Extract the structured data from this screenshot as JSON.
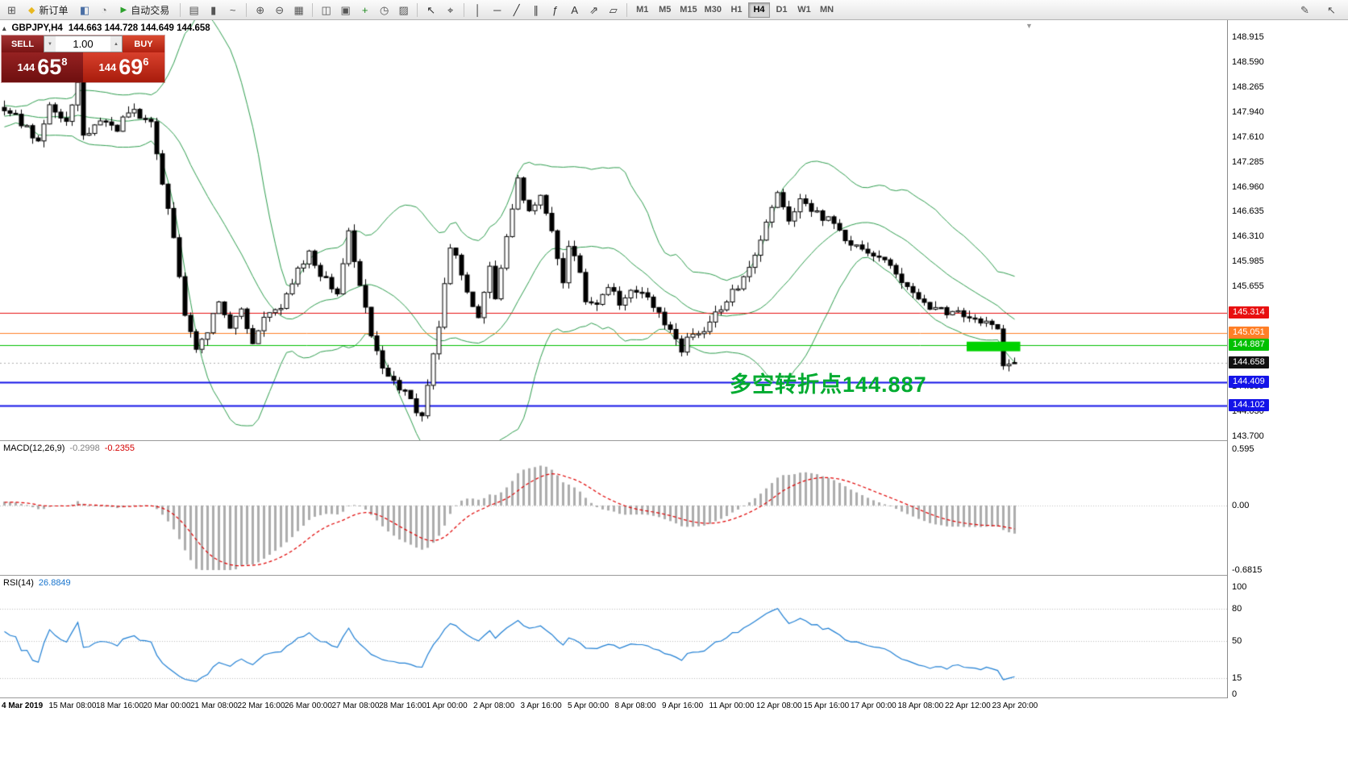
{
  "toolbar": {
    "group_file": [
      {
        "name": "new-chart-button",
        "glyph": "⊞",
        "color": "#555"
      }
    ],
    "new_order": {
      "label": "新订单",
      "icon_glyph": "◆",
      "icon_color": "#e8b820"
    },
    "group_mid": [
      {
        "name": "metaeditor-icon",
        "glyph": "◧",
        "color": "#4a6fa5"
      },
      {
        "name": "options-icon",
        "glyph": "◔",
        "color": "#777777"
      }
    ],
    "autotrading": {
      "label": "自动交易",
      "icon_glyph": "▶",
      "icon_color": "#2da12d"
    },
    "group_charttype": [
      {
        "name": "bar-chart-button",
        "glyph": "▤",
        "color": "#555"
      },
      {
        "name": "candlestick-chart-button",
        "glyph": "▮",
        "color": "#555"
      },
      {
        "name": "line-chart-button",
        "glyph": "~",
        "color": "#555"
      }
    ],
    "group_zoom": [
      {
        "name": "zoom-in-button",
        "glyph": "⊕",
        "color": "#555"
      },
      {
        "name": "zoom-out-button",
        "glyph": "⊖",
        "color": "#555"
      },
      {
        "name": "tile-windows-button",
        "glyph": "▦",
        "color": "#555"
      }
    ],
    "group_windows": [
      {
        "name": "auto-arrange-button",
        "glyph": "◫",
        "color": "#555"
      },
      {
        "name": "track-chart-button",
        "glyph": "▣",
        "color": "#555"
      },
      {
        "name": "add-indicator-button",
        "glyph": "+",
        "color": "#1d8a1d"
      },
      {
        "name": "periods-button",
        "glyph": "◷",
        "color": "#555"
      },
      {
        "name": "templates-button",
        "glyph": "▨",
        "color": "#555"
      }
    ],
    "group_cursor": [
      {
        "name": "cursor-tool-button",
        "glyph": "↖",
        "color": "#333"
      },
      {
        "name": "crosshair-tool-button",
        "glyph": "⌖",
        "color": "#333"
      }
    ],
    "group_draw": [
      {
        "name": "vertical-line-button",
        "glyph": "│",
        "color": "#333"
      },
      {
        "name": "horizontal-line-button",
        "glyph": "─",
        "color": "#333"
      },
      {
        "name": "trendline-button",
        "glyph": "╱",
        "color": "#333"
      },
      {
        "name": "channel-button",
        "glyph": "∥",
        "color": "#333"
      },
      {
        "name": "fibonacci-button",
        "glyph": "ƒ",
        "color": "#333"
      },
      {
        "name": "text-tool-button",
        "glyph": "A",
        "color": "#333"
      },
      {
        "name": "arrow-tool-button",
        "glyph": "⇗",
        "color": "#333"
      },
      {
        "name": "shapes-button",
        "glyph": "▱",
        "color": "#333"
      }
    ],
    "timeframes": [
      {
        "name": "tf-m1",
        "label": "M1"
      },
      {
        "name": "tf-m5",
        "label": "M5"
      },
      {
        "name": "tf-m15",
        "label": "M15"
      },
      {
        "name": "tf-m30",
        "label": "M30"
      },
      {
        "name": "tf-h1",
        "label": "H1"
      },
      {
        "name": "tf-h4",
        "label": "H4",
        "active": true
      },
      {
        "name": "tf-d1",
        "label": "D1"
      },
      {
        "name": "tf-w1",
        "label": "W1"
      },
      {
        "name": "tf-mn",
        "label": "MN"
      }
    ],
    "group_right": [
      {
        "name": "edit-button",
        "glyph": "✎",
        "color": "#555"
      },
      {
        "name": "pointer-button",
        "glyph": "↖",
        "color": "#555"
      }
    ]
  },
  "chart": {
    "symbol_title": "GBPJPY,H4",
    "ohlc_text": "144.663 144.728 144.649 144.658",
    "collapse_glyph": "▴",
    "shift_marker_glyph": "▼"
  },
  "trade_panel": {
    "sell_label": "SELL",
    "buy_label": "BUY",
    "volume": "1.00",
    "vol_down_glyph": "▼",
    "vol_up_glyph": "▲",
    "sell_price_prefix": "144",
    "sell_price_big": "65",
    "sell_price_sup": "8",
    "buy_price_prefix": "144",
    "buy_price_big": "69",
    "buy_price_sup": "6"
  },
  "annotation": {
    "text": "多空转折点144.887",
    "color": "#00ab30"
  },
  "macd_panel": {
    "label": "MACD(12,26,9)",
    "value_main": "-0.2998",
    "value_signal": "-0.2355",
    "scale": [
      {
        "text": "0.595",
        "value": 0.595
      },
      {
        "text": "0.00",
        "value": 0
      },
      {
        "text": "-0.6815",
        "value": -0.6815
      }
    ]
  },
  "rsi_panel": {
    "label": "RSI(14)",
    "value": "26.8849",
    "scale": [
      {
        "text": "100",
        "value": 100
      },
      {
        "text": "80",
        "value": 80
      },
      {
        "text": "50",
        "value": 50
      },
      {
        "text": "15",
        "value": 15
      },
      {
        "text": "0",
        "value": 0
      }
    ]
  },
  "price_scale": {
    "labels": [
      "148.915",
      "148.590",
      "148.265",
      "147.940",
      "147.610",
      "147.285",
      "146.960",
      "146.635",
      "146.310",
      "145.985",
      "145.655",
      "145.330",
      "145.005",
      "144.680",
      "144.355",
      "144.030",
      "143.700"
    ],
    "badges": [
      {
        "text": "145.314",
        "price": 145.314,
        "bg": "#e81010",
        "fg": "#ffffff"
      },
      {
        "text": "145.051",
        "price": 145.051,
        "bg": "#ff7f27",
        "fg": "#ffffff"
      },
      {
        "text": "144.887",
        "price": 144.887,
        "bg": "#00c000",
        "fg": "#ffffff"
      },
      {
        "text": "144.658",
        "price": 144.658,
        "bg": "#111111",
        "fg": "#ffffff"
      },
      {
        "text": "144.409",
        "price": 144.409,
        "bg": "#1414e8",
        "fg": "#ffffff"
      },
      {
        "text": "144.102",
        "price": 144.102,
        "bg": "#1414e8",
        "fg": "#ffffff"
      }
    ]
  },
  "chart_data": {
    "type": "candlestick",
    "symbol": "GBPJPY",
    "timeframe": "H4",
    "current_bar": {
      "open": 144.663,
      "high": 144.728,
      "low": 144.649,
      "close": 144.658
    },
    "y_axis": {
      "min": 143.7,
      "max": 148.915,
      "tick_step": 0.325
    },
    "bars_total": 180,
    "pre_roll_bars": 40,
    "close_path_anchors": [
      [
        -40,
        147.7
      ],
      [
        -30,
        147.95
      ],
      [
        -20,
        147.75
      ],
      [
        -10,
        147.9
      ],
      [
        0,
        148.0
      ],
      [
        3,
        147.8
      ],
      [
        6,
        147.55
      ],
      [
        8,
        148.05
      ],
      [
        11,
        147.8
      ],
      [
        13,
        148.3
      ],
      [
        14,
        147.6
      ],
      [
        17,
        147.8
      ],
      [
        20,
        147.7
      ],
      [
        22,
        147.95
      ],
      [
        26,
        147.85
      ],
      [
        28,
        147.0
      ],
      [
        30,
        146.3
      ],
      [
        32,
        145.3
      ],
      [
        34,
        144.85
      ],
      [
        36,
        145.1
      ],
      [
        38,
        145.45
      ],
      [
        40,
        145.15
      ],
      [
        42,
        145.35
      ],
      [
        44,
        144.95
      ],
      [
        46,
        145.25
      ],
      [
        49,
        145.4
      ],
      [
        52,
        145.9
      ],
      [
        54,
        146.1
      ],
      [
        56,
        145.8
      ],
      [
        59,
        145.6
      ],
      [
        61,
        146.35
      ],
      [
        63,
        145.7
      ],
      [
        65,
        145.0
      ],
      [
        67,
        144.55
      ],
      [
        69,
        144.45
      ],
      [
        71,
        144.25
      ],
      [
        74,
        143.95
      ],
      [
        75,
        144.4
      ],
      [
        77,
        145.1
      ],
      [
        79,
        146.2
      ],
      [
        81,
        145.85
      ],
      [
        82,
        145.55
      ],
      [
        84,
        145.25
      ],
      [
        86,
        145.9
      ],
      [
        87,
        145.5
      ],
      [
        89,
        146.35
      ],
      [
        91,
        147.05
      ],
      [
        93,
        146.6
      ],
      [
        95,
        146.8
      ],
      [
        97,
        146.35
      ],
      [
        99,
        145.75
      ],
      [
        100,
        146.2
      ],
      [
        102,
        145.85
      ],
      [
        103,
        145.5
      ],
      [
        105,
        145.4
      ],
      [
        107,
        145.65
      ],
      [
        109,
        145.45
      ],
      [
        111,
        145.6
      ],
      [
        114,
        145.5
      ],
      [
        116,
        145.3
      ],
      [
        118,
        145.05
      ],
      [
        120,
        144.8
      ],
      [
        121,
        145.0
      ],
      [
        124,
        145.1
      ],
      [
        126,
        145.3
      ],
      [
        128,
        145.5
      ],
      [
        130,
        145.65
      ],
      [
        132,
        145.9
      ],
      [
        134,
        146.3
      ],
      [
        137,
        146.9
      ],
      [
        139,
        146.55
      ],
      [
        141,
        146.8
      ],
      [
        143,
        146.65
      ],
      [
        145,
        146.55
      ],
      [
        147,
        146.5
      ],
      [
        149,
        146.25
      ],
      [
        151,
        146.2
      ],
      [
        154,
        146.1
      ],
      [
        156,
        146.0
      ],
      [
        158,
        145.85
      ],
      [
        160,
        145.65
      ],
      [
        162,
        145.5
      ],
      [
        164,
        145.4
      ],
      [
        166,
        145.35
      ],
      [
        169,
        145.3
      ],
      [
        171,
        145.28
      ],
      [
        173,
        145.22
      ],
      [
        175,
        145.18
      ],
      [
        176,
        145.1
      ],
      [
        177,
        144.65
      ],
      [
        178,
        144.6
      ],
      [
        179,
        144.658
      ]
    ],
    "indicators": {
      "bollinger": {
        "period": 20,
        "deviation": 2,
        "color": "#2f9e4f"
      },
      "macd": {
        "fast": 12,
        "slow": 26,
        "signal": 9,
        "current_macd": -0.2998,
        "current_signal": -0.2355,
        "scale_max": 0.595,
        "scale_min": -0.6815,
        "histogram_color": "#adadad",
        "signal_color": "#e00000"
      },
      "rsi": {
        "period": 14,
        "current": 26.8849,
        "levels": [
          80,
          50,
          15
        ],
        "color": "#1f7fd4"
      }
    },
    "horizontal_lines": [
      {
        "price": 145.314,
        "color": "#e81010",
        "width": 1
      },
      {
        "price": 145.051,
        "color": "#ff7f27",
        "width": 1
      },
      {
        "price": 144.887,
        "color": "#00c000",
        "width": 1
      },
      {
        "price": 144.409,
        "color": "#1414e8",
        "width": 2
      },
      {
        "price": 144.102,
        "color": "#1414e8",
        "width": 2
      }
    ],
    "current_price": 144.658,
    "highlight_rect": {
      "bar_start": 170.5,
      "bar_end": 180,
      "price_top": 144.935,
      "price_bottom": 144.81,
      "color": "#00d200"
    },
    "time_labels": [
      "4 Mar 2019",
      "15 Mar 08:00",
      "18 Mar 16:00",
      "20 Mar 00:00",
      "21 Mar 08:00",
      "22 Mar 16:00",
      "26 Mar 00:00",
      "27 Mar 08:00",
      "28 Mar 16:00",
      "1 Apr 00:00",
      "2 Apr 08:00",
      "3 Apr 16:00",
      "5 Apr 00:00",
      "8 Apr 08:00",
      "9 Apr 16:00",
      "11 Apr 00:00",
      "12 Apr 08:00",
      "15 Apr 16:00",
      "17 Apr 00:00",
      "18 Apr 08:00",
      "22 Apr 12:00",
      "23 Apr 20:00"
    ]
  }
}
